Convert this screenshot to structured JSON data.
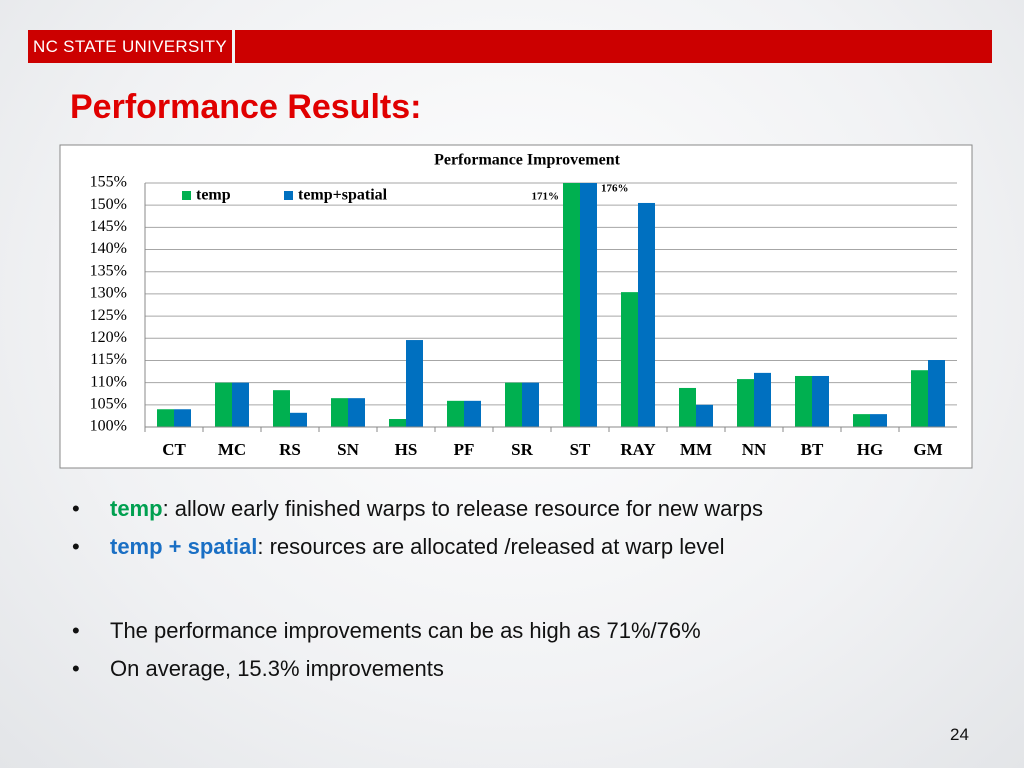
{
  "header": {
    "logo": "NC STATE UNIVERSITY"
  },
  "title": "Performance Results:",
  "chart_data": {
    "type": "bar",
    "title": "Performance Improvement",
    "categories": [
      "CT",
      "MC",
      "RS",
      "SN",
      "HS",
      "PF",
      "SR",
      "ST",
      "RAY",
      "MM",
      "NN",
      "BT",
      "HG",
      "GM"
    ],
    "series": [
      {
        "name": "temp",
        "color": "#00b050",
        "values": [
          104,
          110,
          108.3,
          106.5,
          101.8,
          105.9,
          110,
          171,
          130.4,
          108.8,
          110.8,
          111.5,
          102.9,
          112.8
        ],
        "value_labels": [
          null,
          null,
          null,
          null,
          null,
          null,
          null,
          "171%",
          null,
          null,
          null,
          null,
          null,
          null
        ]
      },
      {
        "name": "temp+spatial",
        "color": "#0070c0",
        "values": [
          104,
          110,
          103.2,
          106.5,
          119.6,
          105.9,
          110,
          176,
          150.5,
          105,
          112.2,
          111.5,
          102.9,
          115.1
        ],
        "value_labels": [
          null,
          null,
          null,
          null,
          null,
          null,
          null,
          "176%",
          null,
          null,
          null,
          null,
          null,
          null
        ]
      }
    ],
    "ylim": [
      100,
      155
    ],
    "yticks": [
      {
        "value": 100,
        "label": "100%"
      },
      {
        "value": 105,
        "label": "105%"
      },
      {
        "value": 110,
        "label": "110%"
      },
      {
        "value": 115,
        "label": "115%"
      },
      {
        "value": 120,
        "label": "120%"
      },
      {
        "value": 125,
        "label": "125%"
      },
      {
        "value": 130,
        "label": "130%"
      },
      {
        "value": 135,
        "label": "135%"
      },
      {
        "value": 140,
        "label": "140%"
      },
      {
        "value": 145,
        "label": "145%"
      },
      {
        "value": 150,
        "label": "150%"
      },
      {
        "value": 155,
        "label": "155%"
      }
    ],
    "grid": true,
    "legend": "top-left"
  },
  "bullets": [
    {
      "term": "temp",
      "term_style": "green",
      "text": ": allow early finished warps to release resource for new warps"
    },
    {
      "term": "temp + spatial",
      "term_style": "blue",
      "text": ": resources are allocated /released at warp level"
    },
    {
      "text": "The performance improvements can be as high as 71%/76%"
    },
    {
      "text": "On average, 15.3% improvements"
    }
  ],
  "page_number": "24"
}
